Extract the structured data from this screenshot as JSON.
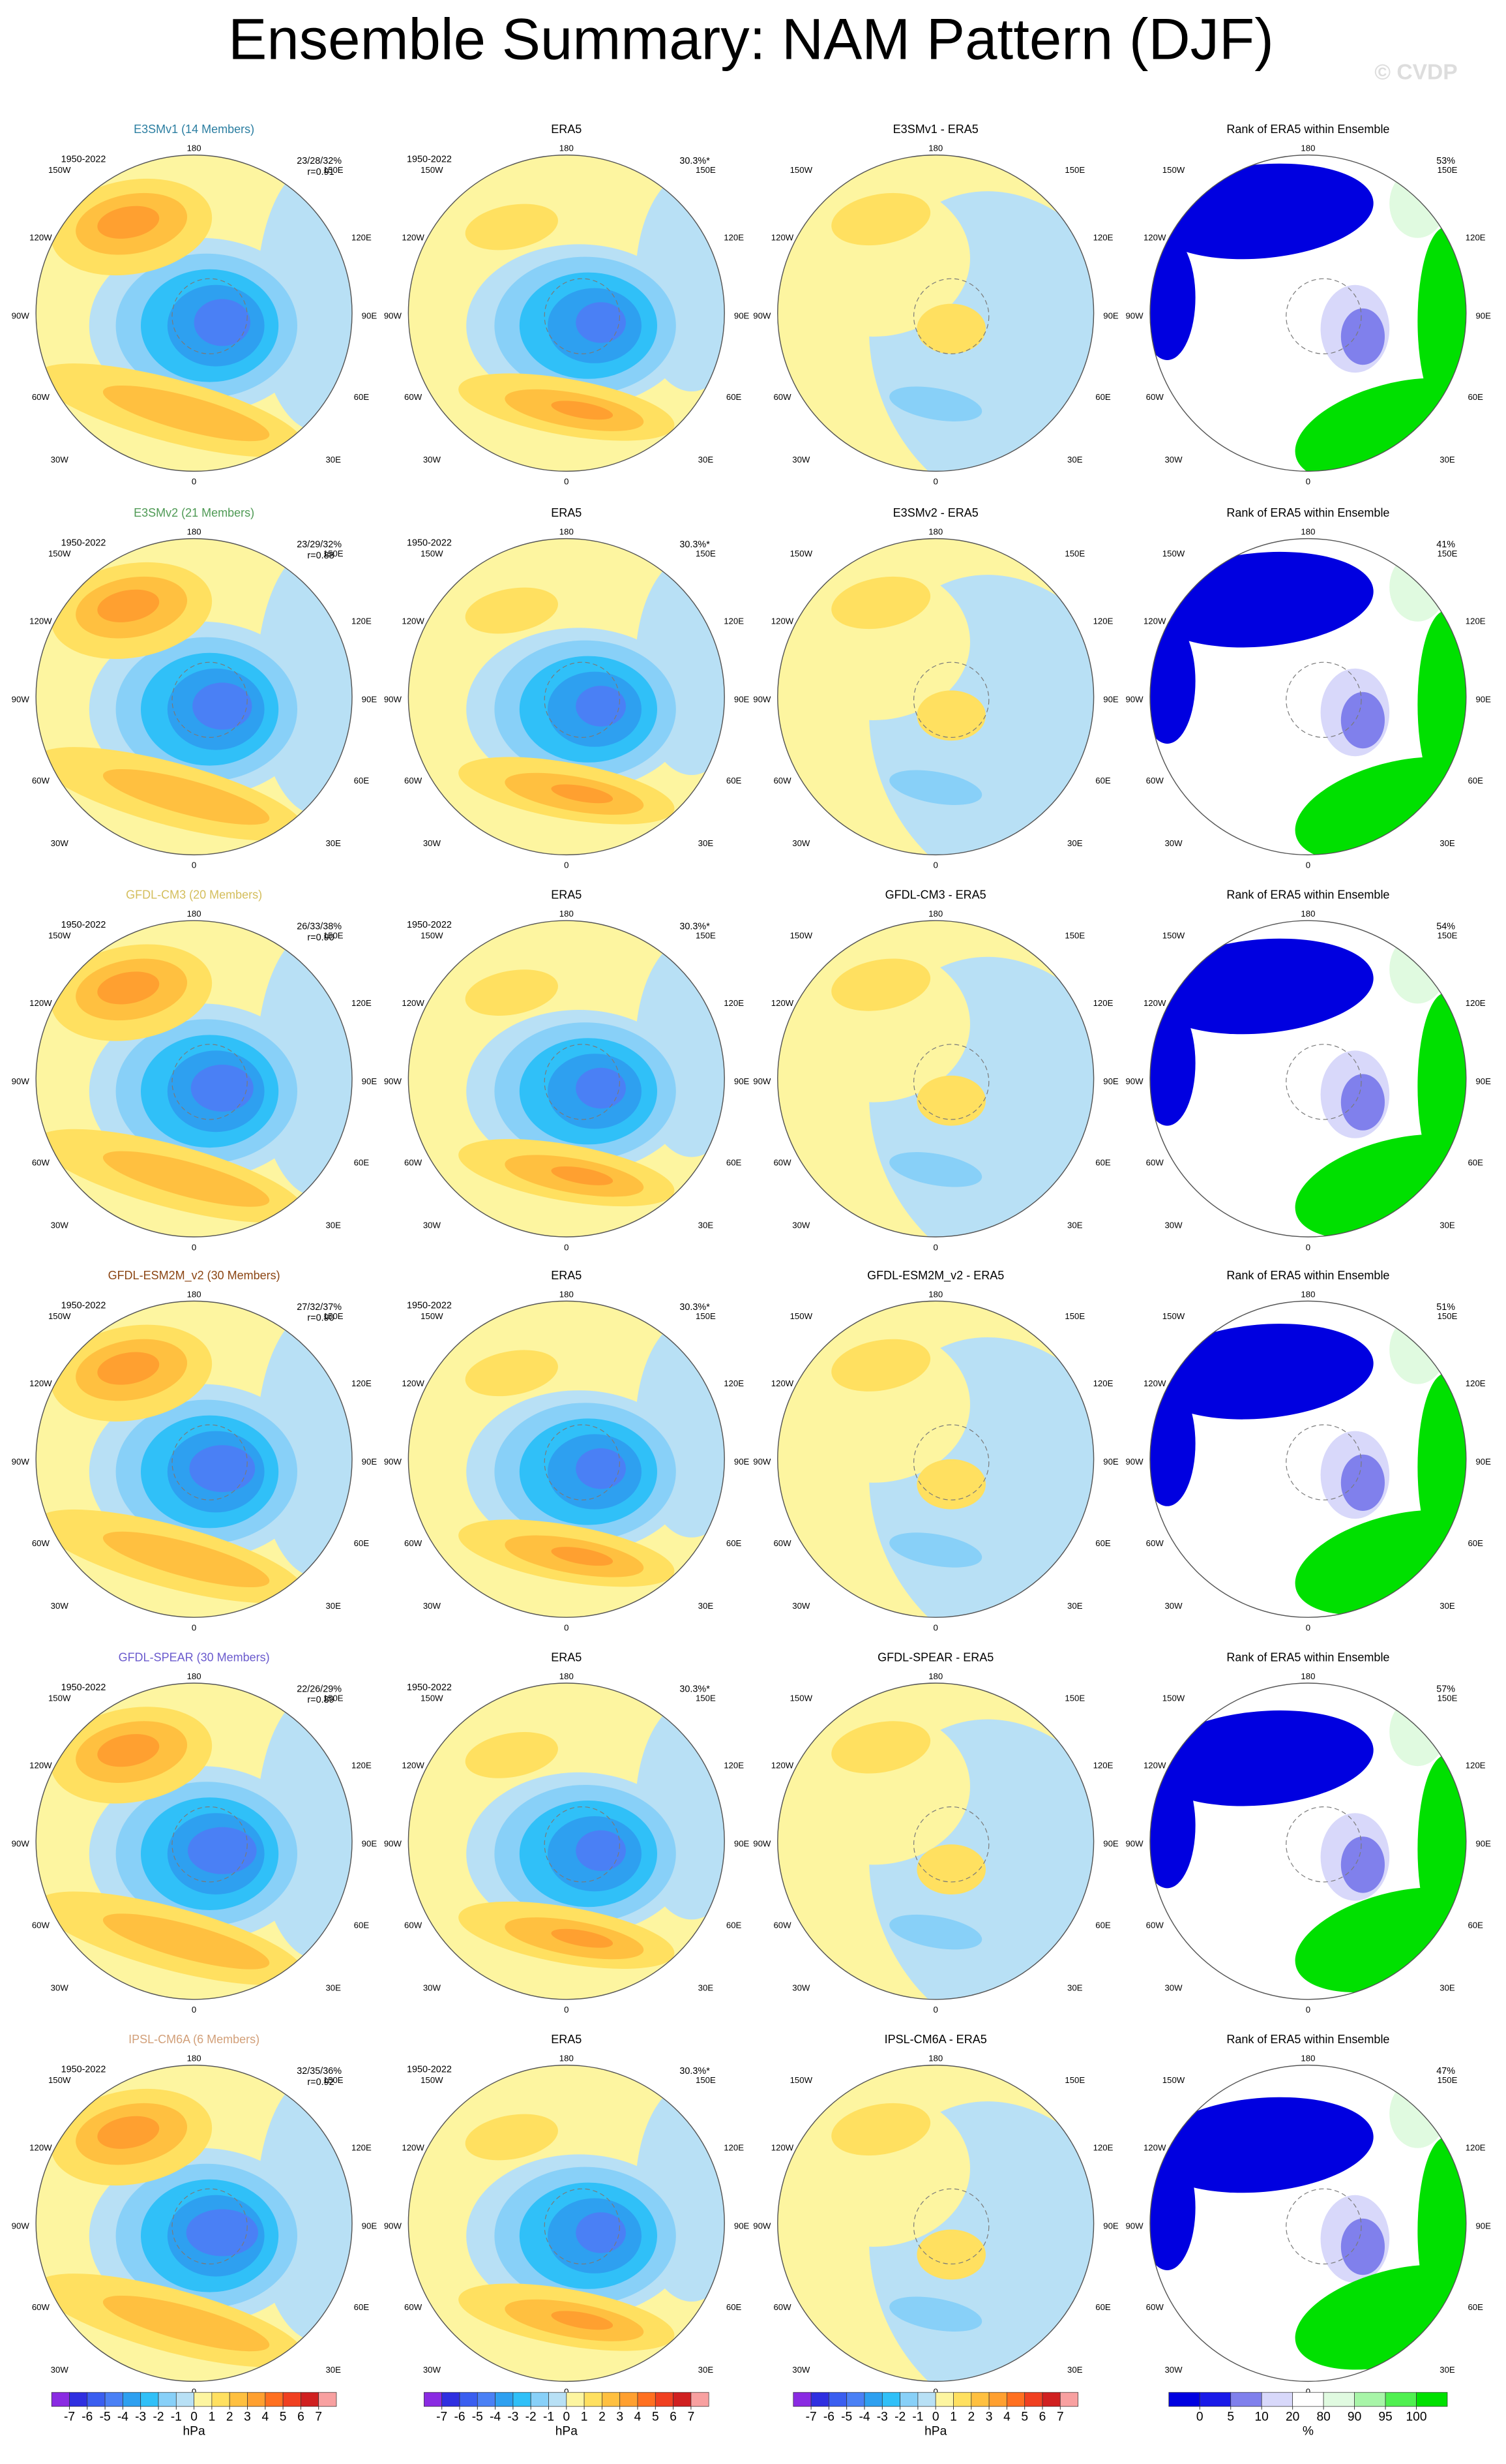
{
  "title": "Ensemble Summary: NAM Pattern (DJF)",
  "watermark": "© CVDP",
  "longitude_labels": {
    "n": "180",
    "nw": "150W",
    "ne": "150E",
    "wnw": "120W",
    "ene": "120E",
    "w": "90W",
    "e": "90E",
    "wsw": "60W",
    "ese": "60E",
    "sw": "30W",
    "se": "30E",
    "s": "0"
  },
  "rows": [
    {
      "model_title": "E3SMv1 (14 Members)",
      "model_color": "#2b7ea1",
      "period": "1950-2022",
      "stats": "23/28/32%",
      "correlation": "r=0.91",
      "obs_title": "ERA5",
      "obs_period": "1950-2022",
      "obs_variance": "30.3%*",
      "diff_title": "E3SMv1 - ERA5",
      "rank_title": "Rank of ERA5 within Ensemble",
      "rank_percent": "53%"
    },
    {
      "model_title": "E3SMv2 (21 Members)",
      "model_color": "#4f9a55",
      "period": "1950-2022",
      "stats": "23/29/32%",
      "correlation": "r=0.88",
      "obs_title": "ERA5",
      "obs_period": "1950-2022",
      "obs_variance": "30.3%*",
      "diff_title": "E3SMv2 - ERA5",
      "rank_title": "Rank of ERA5 within Ensemble",
      "rank_percent": "41%"
    },
    {
      "model_title": "GFDL-CM3 (20 Members)",
      "model_color": "#d4be5c",
      "period": "1950-2022",
      "stats": "26/33/38%",
      "correlation": "r=0.90",
      "obs_title": "ERA5",
      "obs_period": "1950-2022",
      "obs_variance": "30.3%*",
      "diff_title": "GFDL-CM3 - ERA5",
      "rank_title": "Rank of ERA5 within Ensemble",
      "rank_percent": "54%"
    },
    {
      "model_title": "GFDL-ESM2M_v2 (30 Members)",
      "model_color": "#8b4513",
      "period": "1950-2022",
      "stats": "27/32/37%",
      "correlation": "r=0.90",
      "obs_title": "ERA5",
      "obs_period": "1950-2022",
      "obs_variance": "30.3%*",
      "diff_title": "GFDL-ESM2M_v2 - ERA5",
      "rank_title": "Rank of ERA5 within Ensemble",
      "rank_percent": "51%"
    },
    {
      "model_title": "GFDL-SPEAR (30 Members)",
      "model_color": "#6a5acd",
      "period": "1950-2022",
      "stats": "22/26/29%",
      "correlation": "r=0.89",
      "obs_title": "ERA5",
      "obs_period": "1950-2022",
      "obs_variance": "30.3%*",
      "diff_title": "GFDL-SPEAR - ERA5",
      "rank_title": "Rank of ERA5 within Ensemble",
      "rank_percent": "57%"
    },
    {
      "model_title": "IPSL-CM6A (6 Members)",
      "model_color": "#d2a07a",
      "period": "1950-2022",
      "stats": "32/35/36%",
      "correlation": "r=0.92",
      "obs_title": "ERA5",
      "obs_period": "1950-2022",
      "obs_variance": "30.3%*",
      "diff_title": "IPSL-CM6A - ERA5",
      "rank_title": "Rank of ERA5 within Ensemble",
      "rank_percent": "47%"
    }
  ],
  "colorbar": {
    "ticks": [
      -7,
      -6,
      -5,
      -4,
      -3,
      -2,
      -1,
      0,
      1,
      2,
      3,
      4,
      5,
      6,
      7
    ],
    "colors": [
      "#8a2be2",
      "#2f2fe0",
      "#3a5ef0",
      "#4a80f5",
      "#2ea0f0",
      "#30c0f8",
      "#88d0f8",
      "#b8e0f5",
      "#fdf5a0",
      "#ffe060",
      "#ffc040",
      "#ffa030",
      "#ff7020",
      "#f04020",
      "#d02020",
      "#f8a0a0"
    ],
    "units": "hPa"
  },
  "rank_colorbar": {
    "ticks": [
      0,
      5,
      10,
      20,
      80,
      90,
      95,
      100
    ],
    "colors": [
      "#0000e0",
      "#1a1ae8",
      "#8080ec",
      "#d8d8fa",
      "#ffffff",
      "#e0fae0",
      "#a8f5a8",
      "#50f050",
      "#00e000"
    ],
    "units": "%"
  }
}
